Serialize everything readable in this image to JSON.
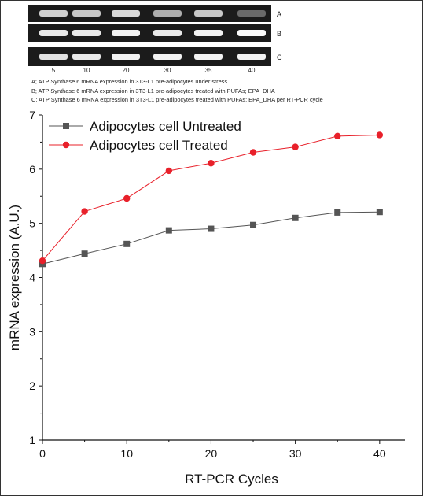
{
  "gel": {
    "row_labels": [
      "A",
      "B",
      "C"
    ],
    "lane_labels": [
      "5",
      "10",
      "20",
      "30",
      "35",
      "40"
    ],
    "captions": [
      "A; ATP Synthase 6 mRNA expression in 3T3-L1 pre-adipocytes under stress",
      "B; ATP Synthase 6 mRNA expression in 3T3-L1 pre-adipocytes treated with PUFAs; EPA_DHA",
      "C; ATP Synthase 6 mRNA expression in 3T3-L1 pre-adipocytes treated with PUFAs; EPA_DHA per RT-PCR cycle"
    ]
  },
  "chart_data": {
    "type": "line",
    "title": "",
    "xlabel": "RT-PCR Cycles",
    "ylabel": "mRNA expression (A.U.)",
    "xlim": [
      0,
      43
    ],
    "ylim": [
      1,
      7
    ],
    "xticks": [
      0,
      10,
      20,
      30,
      40
    ],
    "yticks": [
      1,
      2,
      3,
      4,
      5,
      6,
      7
    ],
    "legend_position": "top-left",
    "grid": false,
    "x": [
      0,
      5,
      10,
      15,
      20,
      25,
      30,
      35,
      40
    ],
    "series": [
      {
        "name": "Adipocytes cell Untreated",
        "color": "#555555",
        "marker": "square",
        "values": [
          4.25,
          4.44,
          4.62,
          4.87,
          4.9,
          4.97,
          5.1,
          5.2,
          5.21
        ]
      },
      {
        "name": "Adipocytes cell Treated",
        "color": "#e8202a",
        "marker": "circle",
        "values": [
          4.31,
          5.22,
          5.46,
          5.97,
          6.11,
          6.31,
          6.41,
          6.61,
          6.63
        ]
      }
    ]
  }
}
